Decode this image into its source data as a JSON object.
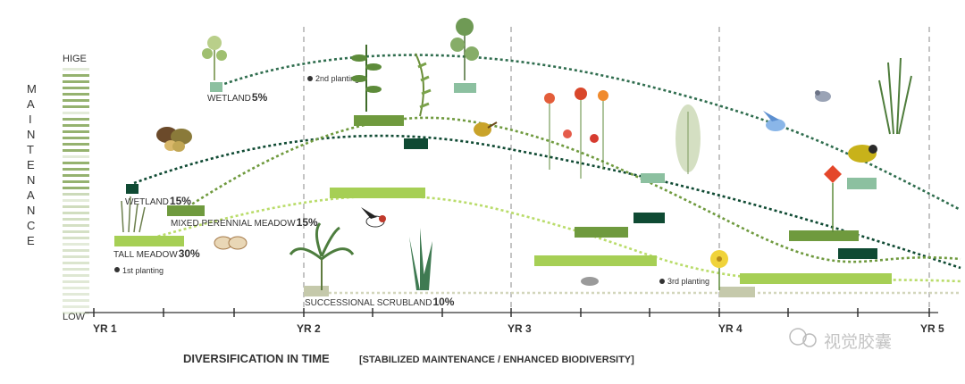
{
  "title": "DIVERSIFICATION IN TIME",
  "subtitle": "[STABILIZED MAINTENANCE / ENHANCED BIODIVERSITY]",
  "y_axis": {
    "label": "MAINTENANCE",
    "high": "HIGE",
    "low": "LOW"
  },
  "x_axis": {
    "ticks": [
      "YR 1",
      "YR 2",
      "YR 3",
      "YR 4",
      "YR 5"
    ]
  },
  "plantings": [
    {
      "label": "1st planting"
    },
    {
      "label": "2nd planting"
    },
    {
      "label": "3rd planting"
    }
  ],
  "series": [
    {
      "name": "WETLAND",
      "share": "5%",
      "color": "#2f6d4e"
    },
    {
      "name": "WETLAND",
      "share": "15%",
      "color": "#0f4a33"
    },
    {
      "name": "MIXED PERENNIAL MEADOW",
      "share": "15%",
      "color": "#6f9a3e"
    },
    {
      "name": "TALL MEADOW",
      "share": "30%",
      "color": "#a6cf55"
    },
    {
      "name": "SUCCESSIONAL SCRUBLAND",
      "share": "10%",
      "color": "#c5c9ab"
    }
  ],
  "watermark": "视觉胶囊",
  "colors": {
    "grid_dash": "#888888",
    "axis": "#333333",
    "maint_bar": "#8fae67"
  }
}
